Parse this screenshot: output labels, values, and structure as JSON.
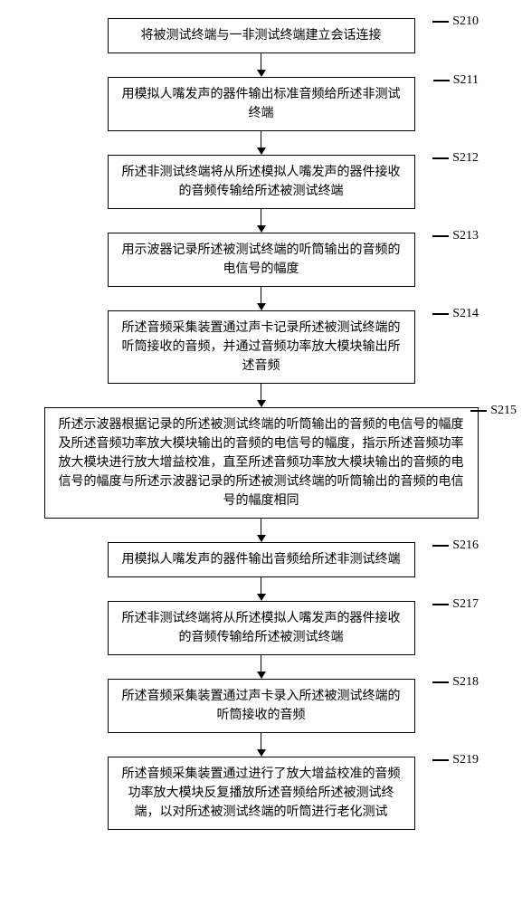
{
  "flowchart": {
    "type": "flowchart",
    "background_color": "#ffffff",
    "border_color": "#000000",
    "text_color": "#000000",
    "font_size": 14,
    "line_height": 1.5,
    "node_narrow_width": 340,
    "node_wide_width": 480,
    "arrow_gap": 26,
    "steps": [
      {
        "id": "S210",
        "width": "narrow",
        "text": "将被测试终端与一非测试终端建立会话连接"
      },
      {
        "id": "S211",
        "width": "narrow",
        "text": "用模拟人嘴发声的器件输出标准音频给所述非测试终端"
      },
      {
        "id": "S212",
        "width": "narrow",
        "text": "所述非测试终端将从所述模拟人嘴发声的器件接收的音频传输给所述被测试终端"
      },
      {
        "id": "S213",
        "width": "narrow",
        "text": "用示波器记录所述被测试终端的听筒输出的音频的电信号的幅度"
      },
      {
        "id": "S214",
        "width": "narrow",
        "text": "所述音频采集装置通过声卡记录所述被测试终端的听筒接收的音频，并通过音频功率放大模块输出所述音频"
      },
      {
        "id": "S215",
        "width": "wide",
        "text": "所述示波器根据记录的所述被测试终端的听筒输出的音频的电信号的幅度及所述音频功率放大模块输出的音频的电信号的幅度，指示所述音频功率放大模块进行放大增益校准，直至所述音频功率放大模块输出的音频的电信号的幅度与所述示波器记录的所述被测试终端的听筒输出的音频的电信号的幅度相同"
      },
      {
        "id": "S216",
        "width": "narrow",
        "text": "用模拟人嘴发声的器件输出音频给所述非测试终端"
      },
      {
        "id": "S217",
        "width": "narrow",
        "text": "所述非测试终端将从所述模拟人嘴发声的器件接收的音频传输给所述被测试终端"
      },
      {
        "id": "S218",
        "width": "narrow",
        "text": "所述音频采集装置通过声卡录入所述被测试终端的听筒接收的音频"
      },
      {
        "id": "S219",
        "width": "narrow",
        "text": "所述音频采集装置通过进行了放大增益校准的音频功率放大模块反复播放所述音频给所述被测试终端，以对所述被测试终端的听筒进行老化测试"
      }
    ]
  }
}
